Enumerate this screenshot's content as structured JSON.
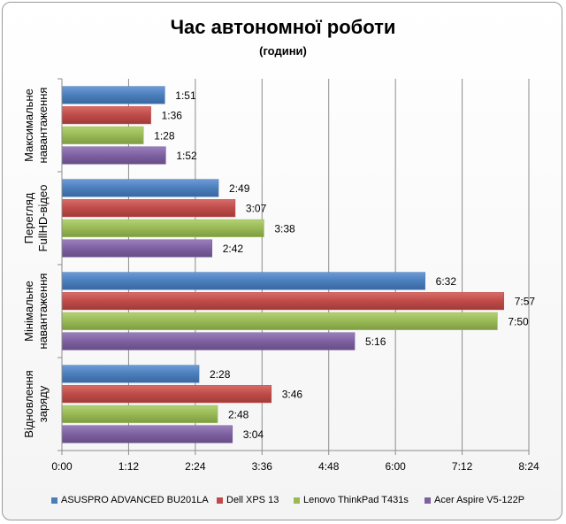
{
  "chart_data": {
    "type": "bar",
    "orientation": "horizontal",
    "title": "Час автономної роботи",
    "subtitle": "(години)",
    "categories": [
      "Максимальне навантаження",
      "Перегляд FullHD-відео",
      "Мінімальне навантаження",
      "Відновлення заряду"
    ],
    "category_lines": [
      [
        "Максимальне",
        "навантаження"
      ],
      [
        "Перегляд",
        "FullHD-відео"
      ],
      [
        "Мінімальне",
        "навантаження"
      ],
      [
        "Відновлення",
        "заряду"
      ]
    ],
    "xlim_minutes": [
      0,
      504
    ],
    "x_ticks": [
      "0:00",
      "1:12",
      "2:24",
      "3:36",
      "4:48",
      "6:00",
      "7:12",
      "8:24"
    ],
    "grid": true,
    "legend_position": "bottom",
    "series": [
      {
        "name": "ASUSPRO ADVANCED BU201LA",
        "color": "#4a7ebb",
        "values": [
          111,
          169,
          392,
          148
        ],
        "labels": [
          "1:51",
          "2:49",
          "6:32",
          "2:28"
        ]
      },
      {
        "name": "Dell XPS 13",
        "color": "#be4b48",
        "values": [
          96,
          187,
          477,
          226
        ],
        "labels": [
          "1:36",
          "3:07",
          "7:57",
          "3:46"
        ]
      },
      {
        "name": "Lenovo ThinkPad T431s",
        "color": "#98b954",
        "values": [
          88,
          218,
          470,
          168
        ],
        "labels": [
          "1:28",
          "3:38",
          "7:50",
          "2:48"
        ]
      },
      {
        "name": "Acer Aspire V5-122P",
        "color": "#7d60a0",
        "values": [
          112,
          162,
          316,
          184
        ],
        "labels": [
          "1:52",
          "2:42",
          "5:16",
          "3:04"
        ]
      }
    ]
  }
}
